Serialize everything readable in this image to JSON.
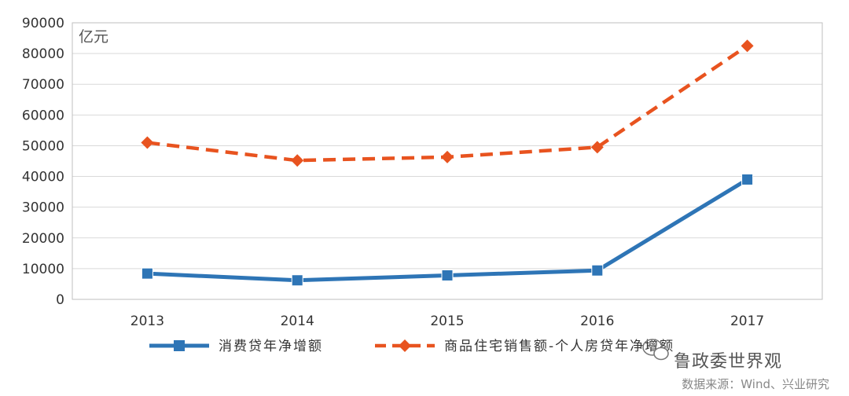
{
  "chart_data": {
    "type": "line",
    "unit_label": "亿元",
    "categories": [
      "2013",
      "2014",
      "2015",
      "2016",
      "2017"
    ],
    "ylim": [
      0,
      90000
    ],
    "yticks": [
      "0",
      "10000",
      "20000",
      "30000",
      "40000",
      "50000",
      "60000",
      "70000",
      "80000",
      "90000"
    ],
    "grid": true,
    "legend_position": "bottom",
    "series": [
      {
        "name": "消费贷年净增额",
        "values": [
          8400,
          6200,
          7800,
          9400,
          39000
        ],
        "color": "#2e75b6",
        "style": "solid",
        "marker": "square"
      },
      {
        "name": "商品住宅销售额-个人房贷年净增额",
        "values": [
          51000,
          45200,
          46300,
          49500,
          82500
        ],
        "color": "#e8531f",
        "style": "dashed",
        "marker": "diamond"
      }
    ]
  },
  "watermark": {
    "account": "鲁政委世界观",
    "source": "数据来源：Wind、兴业研究",
    "icon": "wechat-icon"
  }
}
